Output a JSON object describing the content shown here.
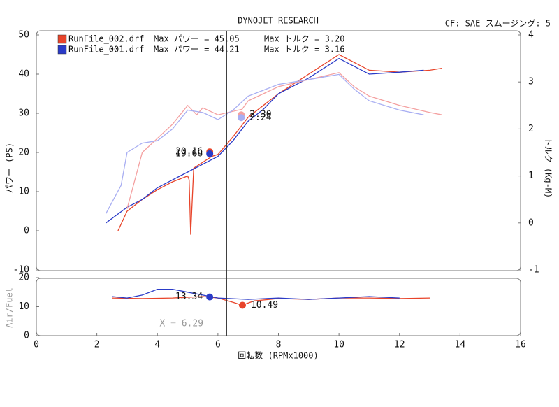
{
  "chart_data": [
    {
      "type": "line",
      "title": "DYNOJET RESEARCH",
      "subtitle": "CF: SAE  スムージング: 5",
      "ylabel": "パワー (PS)",
      "y2label": "トルク (Kg-M)",
      "xlim": [
        0,
        16
      ],
      "ylim": [
        -10,
        50
      ],
      "y2lim": [
        -1,
        4
      ],
      "yticks": [
        -10,
        0,
        10,
        20,
        30,
        40,
        50
      ],
      "y2ticks": [
        -1,
        0,
        1,
        2,
        3,
        4
      ],
      "series": [
        {
          "name": "RunFile_002.drf",
          "color": "#e8442a",
          "max_power": {
            "value": 45.05,
            "label": "Max パワー = 45.05"
          },
          "max_torque": {
            "value": 3.2,
            "label": "Max トルク = 3.20"
          },
          "x": [
            2.7,
            3,
            3.5,
            4,
            4.5,
            5,
            5.05,
            5.1,
            5.2,
            5.5,
            5.8,
            6,
            6.5,
            7,
            7.5,
            8,
            9,
            10,
            10.5,
            11,
            12,
            13,
            13.4
          ],
          "values": [
            0,
            5,
            8,
            10.5,
            12.5,
            14,
            13,
            -1,
            16,
            17.5,
            19,
            19.5,
            24,
            29,
            32,
            35,
            40,
            45,
            43,
            41,
            40.5,
            41,
            41.5
          ]
        },
        {
          "name": "RunFile_001.drf",
          "color": "#2a3bc8",
          "max_power": {
            "value": 44.21,
            "label": "Max パワー = 44.21"
          },
          "max_torque": {
            "value": 3.16,
            "label": "Max トルク = 3.16"
          },
          "x": [
            2.3,
            3,
            3.5,
            4,
            4.5,
            5,
            5.5,
            6,
            6.5,
            7,
            7.5,
            8,
            9,
            10,
            10.5,
            11,
            12,
            12.8
          ],
          "values": [
            2,
            6,
            8,
            11,
            13,
            15,
            17,
            19,
            23,
            28,
            31,
            35,
            39,
            44,
            42,
            40,
            40.5,
            41
          ]
        },
        {
          "axis": "y2",
          "color": "#f4a0a0",
          "x": [
            3,
            3.5,
            4,
            4.5,
            5,
            5.3,
            5.5,
            6,
            6.8,
            7,
            8,
            9,
            10,
            10.5,
            11,
            12,
            13,
            13.4
          ],
          "values": [
            0.3,
            1.5,
            1.8,
            2.1,
            2.5,
            2.3,
            2.45,
            2.3,
            2.42,
            2.6,
            2.9,
            3.05,
            3.2,
            2.9,
            2.7,
            2.5,
            2.35,
            2.3
          ]
        },
        {
          "axis": "y2",
          "color": "#a8aef2",
          "x": [
            2.3,
            2.8,
            3,
            3.5,
            4,
            4.5,
            5,
            5.5,
            6,
            6.5,
            7,
            8,
            9,
            10,
            10.5,
            11,
            12,
            12.8
          ],
          "values": [
            0.2,
            0.8,
            1.5,
            1.7,
            1.75,
            2,
            2.4,
            2.35,
            2.2,
            2.4,
            2.7,
            2.95,
            3.05,
            3.16,
            2.85,
            2.6,
            2.4,
            2.3
          ]
        }
      ],
      "markers": [
        {
          "x": 5.73,
          "value": 20.16,
          "color": "#e8442a"
        },
        {
          "x": 5.73,
          "value": 19.66,
          "color": "#2a3bc8"
        },
        {
          "x": 6.77,
          "value": 2.3,
          "label": "2.30",
          "axis": "y2",
          "color": "#f4a0a0"
        },
        {
          "x": 6.77,
          "value": 2.24,
          "axis": "y2",
          "color": "#a8aef2"
        }
      ]
    },
    {
      "type": "line",
      "ylabel": "Air/Fuel",
      "xlabel": "回転数 (RPMx1000)",
      "xlim": [
        0,
        16
      ],
      "ylim": [
        0,
        20
      ],
      "yticks": [
        0,
        10,
        20
      ],
      "xticks": [
        0,
        2,
        4,
        6,
        8,
        10,
        12,
        14,
        16
      ],
      "cursor": {
        "value": 6.29,
        "label": "X = 6.29"
      },
      "series": [
        {
          "color": "#e8442a",
          "x": [
            2.5,
            3.5,
            4.5,
            5.5,
            6,
            6.5,
            6.8,
            7.2,
            8,
            9,
            10,
            11,
            12,
            13
          ],
          "values": [
            13,
            12.8,
            13,
            13.5,
            13,
            11.5,
            10.5,
            12,
            12.8,
            12.5,
            13,
            13,
            12.8,
            13
          ]
        },
        {
          "color": "#2a3bc8",
          "x": [
            2.5,
            3,
            3.5,
            4,
            4.5,
            5,
            5.5,
            6,
            7,
            8,
            9,
            10,
            11,
            12
          ],
          "values": [
            13.5,
            13,
            14,
            16,
            16,
            15,
            14,
            13,
            12.5,
            13,
            12.5,
            13,
            13.5,
            13
          ]
        }
      ],
      "markers": [
        {
          "x": 5.73,
          "value": 13.34,
          "color": "#2a3bc8"
        },
        {
          "x": 6.81,
          "value": 10.49,
          "color": "#e8442a"
        }
      ]
    }
  ]
}
